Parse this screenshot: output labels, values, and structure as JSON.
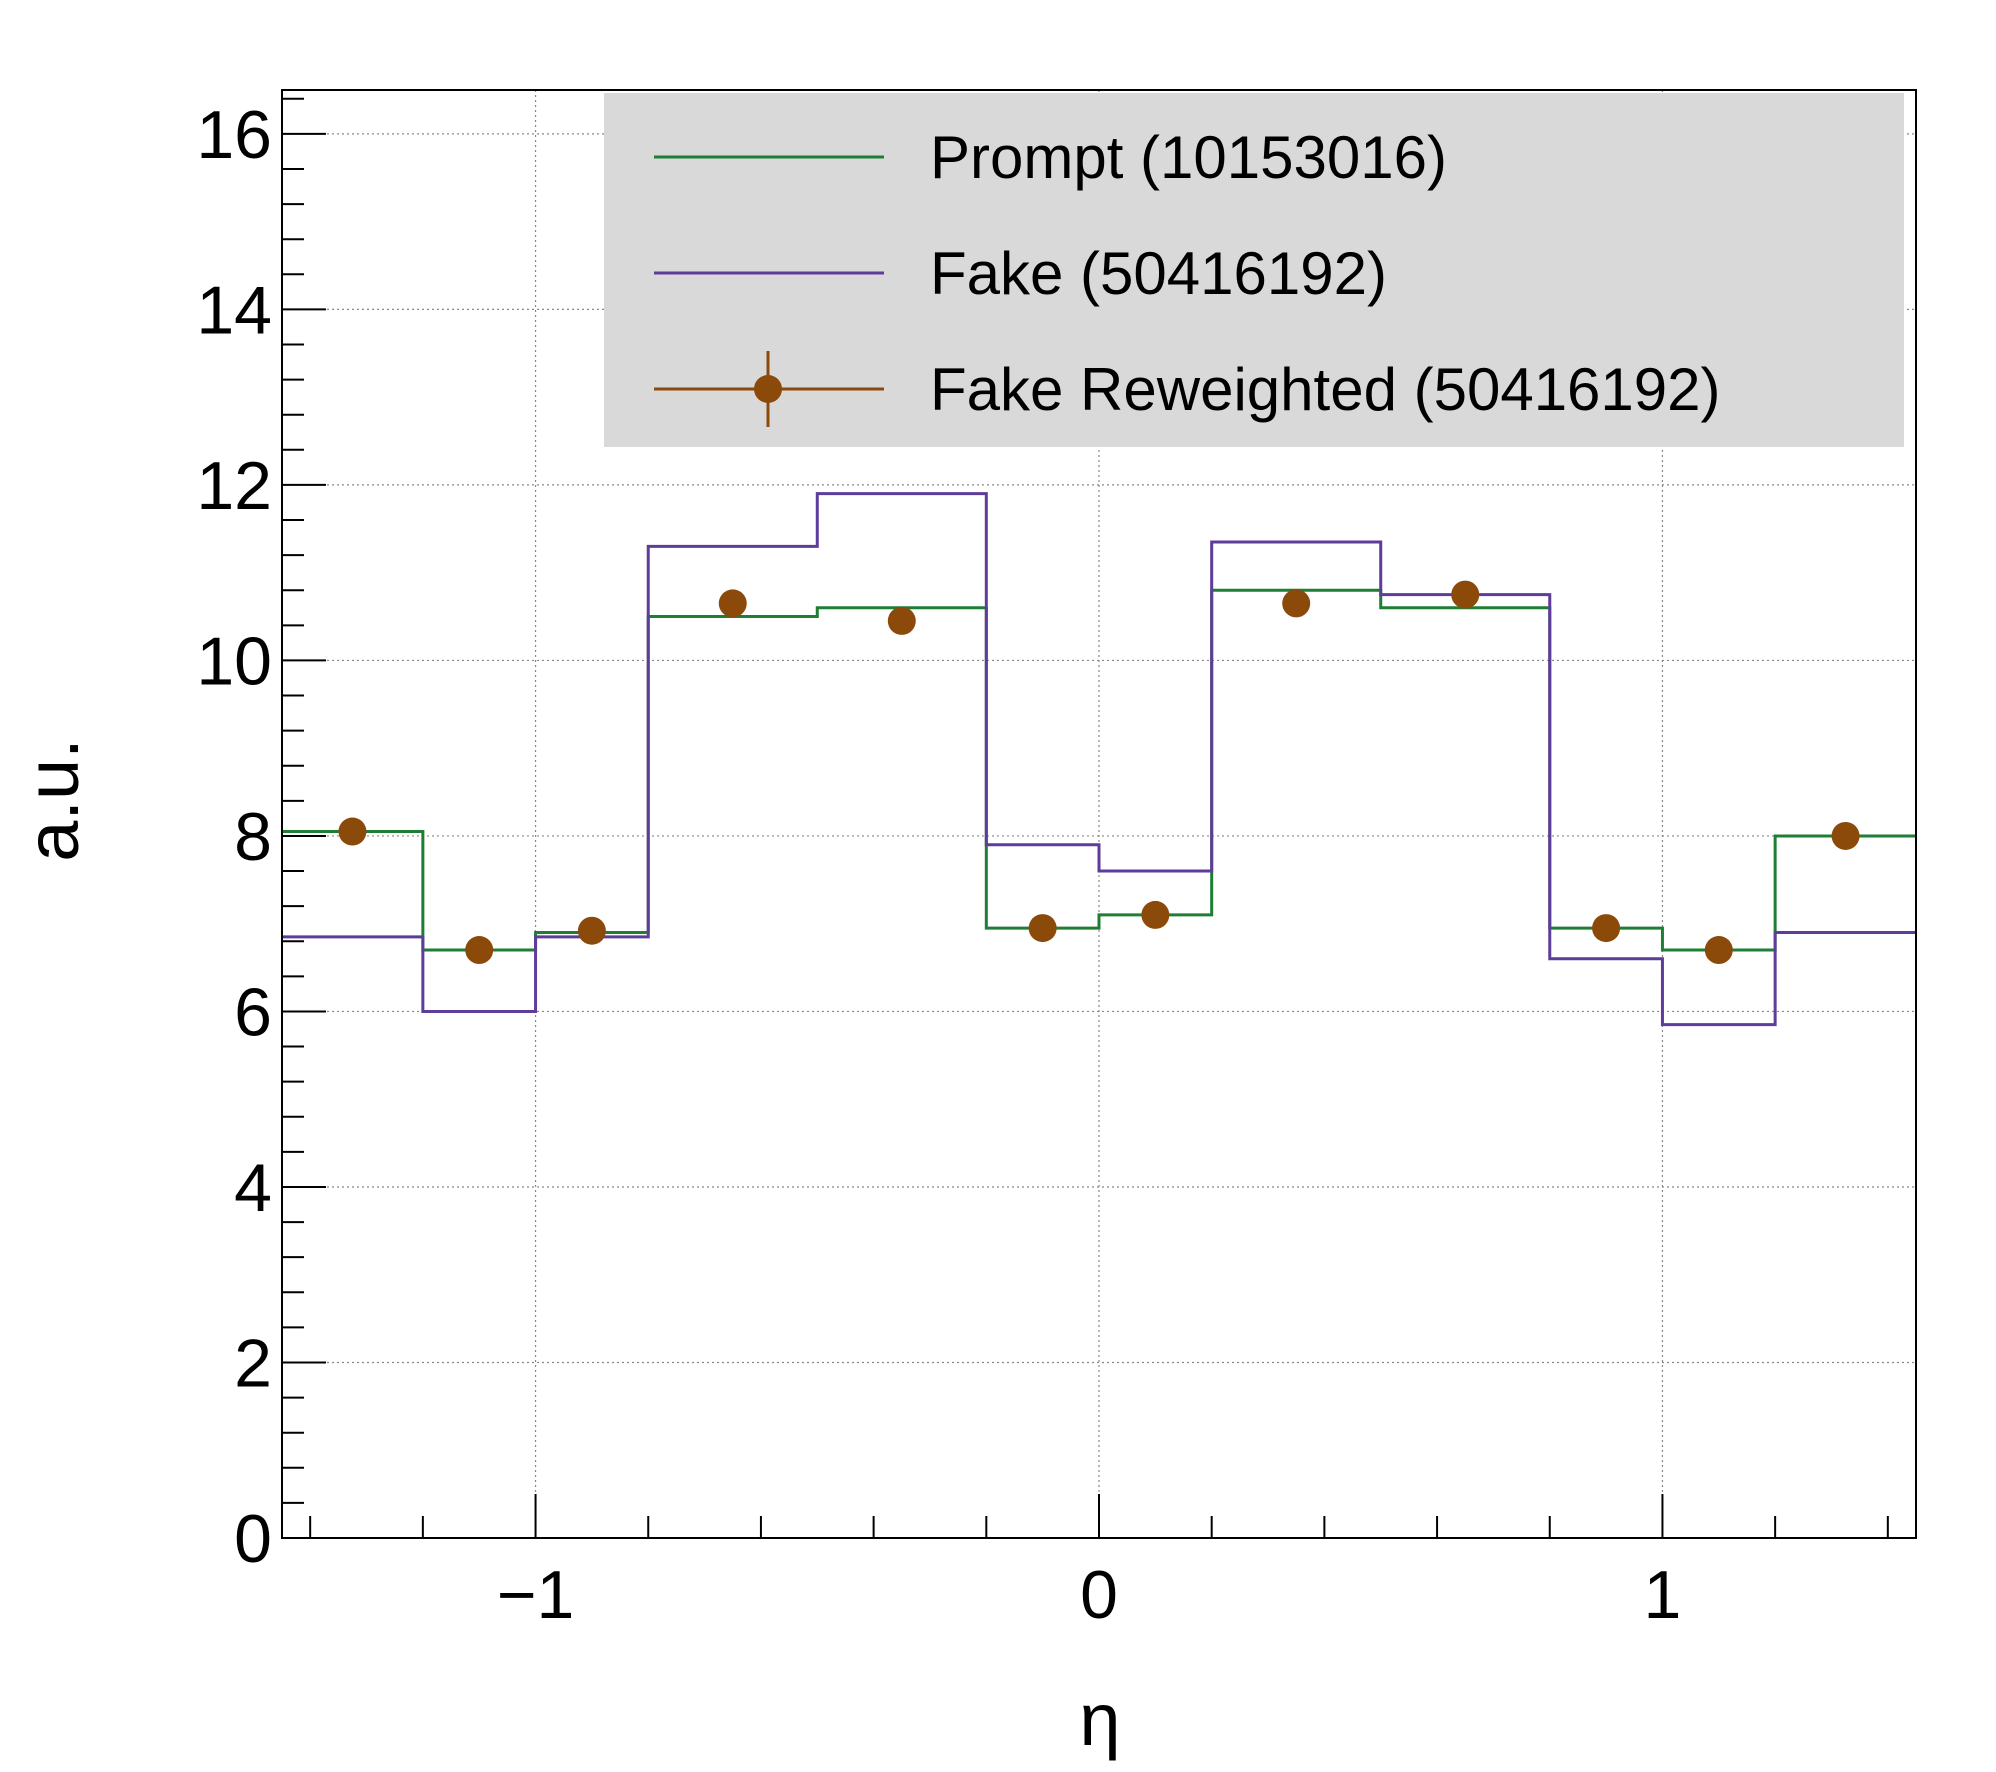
{
  "chart_data": {
    "type": "line",
    "subtype": "step-histogram",
    "xlabel": "η",
    "ylabel": "a.u.",
    "xlim": [
      -1.45,
      1.45
    ],
    "ylim": [
      0,
      16.5
    ],
    "grid": true,
    "x_ticks": [
      {
        "v": -1,
        "label": "−1"
      },
      {
        "v": 0,
        "label": "0"
      },
      {
        "v": 1,
        "label": "1"
      }
    ],
    "y_ticks": [
      {
        "v": 0,
        "label": "0"
      },
      {
        "v": 2,
        "label": "2"
      },
      {
        "v": 4,
        "label": "4"
      },
      {
        "v": 6,
        "label": "6"
      },
      {
        "v": 8,
        "label": "8"
      },
      {
        "v": 10,
        "label": "10"
      },
      {
        "v": 12,
        "label": "12"
      },
      {
        "v": 14,
        "label": "14"
      },
      {
        "v": 16,
        "label": "16"
      }
    ],
    "bin_edges": [
      -1.45,
      -1.2,
      -1.0,
      -0.8,
      -0.5,
      -0.2,
      0.0,
      0.2,
      0.5,
      0.8,
      1.0,
      1.2,
      1.45
    ],
    "legend_position": "top-right",
    "series": [
      {
        "name": "Prompt (10153016)",
        "style": "step",
        "color": "#1e7e34",
        "values": [
          8.05,
          6.7,
          6.9,
          10.5,
          10.6,
          6.95,
          7.1,
          10.8,
          10.6,
          6.95,
          6.7,
          8.0
        ]
      },
      {
        "name": "Fake (50416192)",
        "style": "step",
        "color": "#5e3c99",
        "values": [
          6.85,
          6.0,
          6.85,
          11.3,
          11.9,
          7.9,
          7.6,
          11.35,
          10.75,
          6.6,
          5.85,
          6.9
        ]
      },
      {
        "name": "Fake Reweighted (50416192)",
        "style": "marker",
        "color": "#8b4a0a",
        "values": [
          8.05,
          6.7,
          6.92,
          10.65,
          10.45,
          6.95,
          7.1,
          10.65,
          10.75,
          6.95,
          6.7,
          8.0
        ]
      }
    ]
  }
}
